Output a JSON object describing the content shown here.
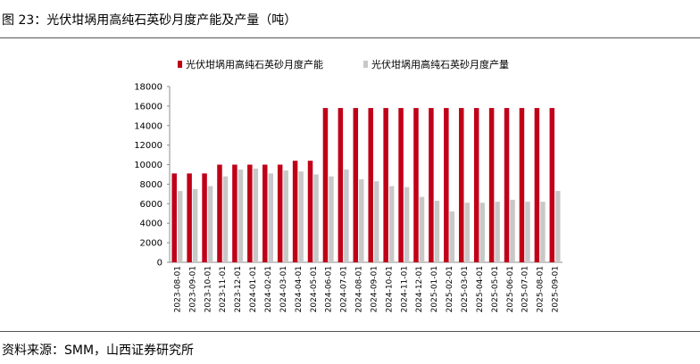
{
  "figure_title": "图 23：光伏坩埚用高纯石英砂月度产能及产量（吨）",
  "source_note": "资料来源：SMM，山西证券研究所",
  "colors": {
    "capacity": "#c00018",
    "output": "#c8c8c8",
    "axis": "#8c8c8c"
  },
  "chart_data": {
    "type": "bar",
    "title": "",
    "xlabel": "",
    "ylabel": "",
    "ylim": [
      0,
      18000
    ],
    "yticks": [
      0,
      2000,
      4000,
      6000,
      8000,
      10000,
      12000,
      14000,
      16000,
      18000
    ],
    "grid": false,
    "legend_position": "top",
    "categories": [
      "2023-08-01",
      "2023-09-01",
      "2023-10-01",
      "2023-11-01",
      "2023-12-01",
      "2024-01-01",
      "2024-02-01",
      "2024-03-01",
      "2024-04-01",
      "2024-05-01",
      "2024-06-01",
      "2024-07-01",
      "2024-08-01",
      "2024-09-01",
      "2024-10-01",
      "2024-11-01",
      "2024-12-01",
      "2025-01-01",
      "2025-02-01",
      "2025-03-01",
      "2025-04-01",
      "2025-05-01",
      "2025-06-01",
      "2025-07-01",
      "2025-08-01",
      "2025-09-01"
    ],
    "series": [
      {
        "name": "光伏坩埚用高纯石英砂月度产能",
        "values": [
          9100,
          9100,
          9100,
          10000,
          10000,
          10000,
          10000,
          10000,
          10400,
          10400,
          15800,
          15800,
          15800,
          15800,
          15800,
          15800,
          15800,
          15800,
          15800,
          15800,
          15800,
          15800,
          15800,
          15800,
          15800,
          15800
        ]
      },
      {
        "name": "光伏坩埚用高纯石英砂月度产量",
        "values": [
          7300,
          7500,
          7800,
          8800,
          9500,
          9600,
          9100,
          9400,
          9300,
          9000,
          8800,
          9500,
          8500,
          8300,
          7800,
          7700,
          6700,
          6300,
          5200,
          6100,
          6100,
          6200,
          6400,
          6200,
          6200,
          7300
        ]
      }
    ]
  }
}
